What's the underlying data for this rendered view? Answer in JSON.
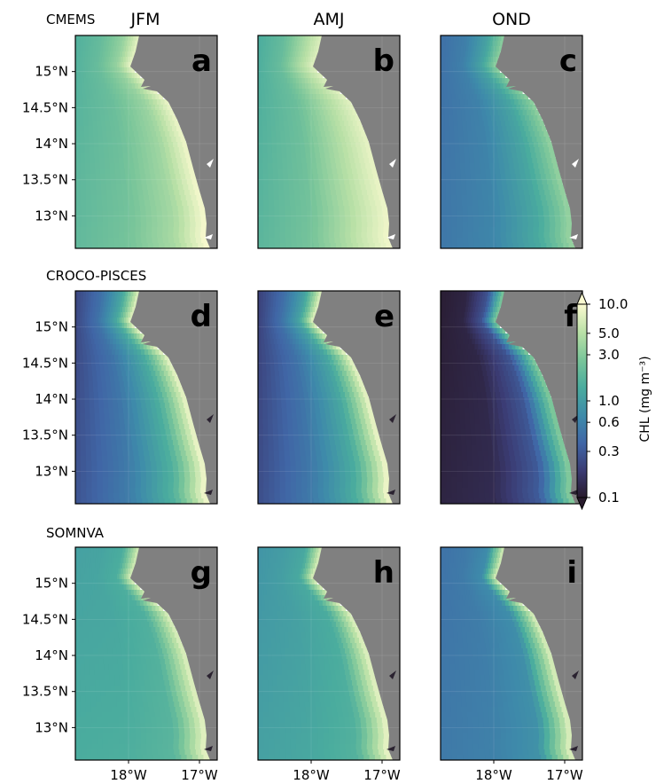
{
  "chart_data": {
    "type": "heatmap",
    "columns": [
      "JFM",
      "AMJ",
      "OND"
    ],
    "rows": [
      {
        "label": "CMEMS",
        "panels": [
          "a",
          "b",
          "c"
        ]
      },
      {
        "label": "CROCO-PISCES",
        "panels": [
          "d",
          "e",
          "f"
        ]
      },
      {
        "label": "SOMNVA",
        "panels": [
          "g",
          "h",
          "i"
        ]
      }
    ],
    "y_ticks": [
      15,
      14.5,
      14,
      13.5,
      13
    ],
    "y_tick_labels": [
      "15°N",
      "14.5°N",
      "14°N",
      "13.5°N",
      "13°N"
    ],
    "x_ticks": [
      -18,
      -17
    ],
    "x_tick_labels": [
      "18°W",
      "17°W"
    ],
    "lat_range": [
      12.55,
      15.5
    ],
    "lon_range": [
      -18.75,
      -16.75
    ],
    "colorbar": {
      "label": "CHL (mg m⁻³)",
      "ticks": [
        10.0,
        5.0,
        3.0,
        1.0,
        0.6,
        0.3,
        0.1
      ],
      "tick_labels": [
        "10.0",
        "5.0",
        "3.0",
        "1.0",
        "0.6",
        "0.3",
        "0.1"
      ],
      "range": [
        0.1,
        10.0
      ],
      "scale": "log",
      "extend": "both",
      "colors": [
        "#281a2c",
        "#3b3c74",
        "#4066a6",
        "#3e8aaa",
        "#4aac9e",
        "#79c59a",
        "#b8e0a6",
        "#fbfad0"
      ]
    },
    "land_color": "#808080",
    "panel_mean_level": {
      "a": [
        0.62,
        0.68,
        0.8,
        0.98
      ],
      "b": [
        0.6,
        0.68,
        0.85,
        0.96
      ],
      "c": [
        0.34,
        0.4,
        0.55,
        0.78
      ],
      "d": [
        0.2,
        0.35,
        0.58,
        0.98
      ],
      "e": [
        0.18,
        0.34,
        0.56,
        0.98
      ],
      "f": [
        0.03,
        0.06,
        0.24,
        0.76
      ],
      "g": [
        0.55,
        0.56,
        0.6,
        0.95
      ],
      "h": [
        0.5,
        0.53,
        0.58,
        0.96
      ],
      "i": [
        0.35,
        0.38,
        0.45,
        0.95
      ]
    }
  }
}
